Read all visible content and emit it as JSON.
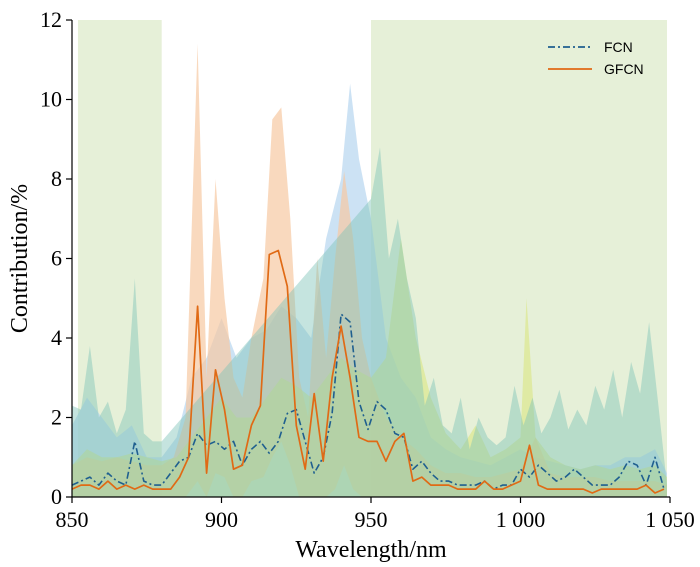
{
  "chart_data": {
    "type": "line",
    "xlabel": "Wavelength/nm",
    "ylabel": "Contribution/%",
    "xlim": [
      850,
      1050
    ],
    "ylim": [
      0,
      12
    ],
    "x_ticks": [
      850,
      900,
      950,
      1000,
      1050
    ],
    "x_tick_labels": [
      "850",
      "900",
      "950",
      "1 000",
      "1 050"
    ],
    "y_ticks": [
      0,
      2,
      4,
      6,
      8,
      10,
      12
    ],
    "y_tick_labels": [
      "0",
      "2",
      "4",
      "6",
      "8",
      "10",
      "12"
    ],
    "highlight_regions": [
      [
        852,
        880
      ],
      [
        950,
        1049
      ]
    ],
    "legend_position": "top-right",
    "colors": {
      "region": "#e6f0d8",
      "fcn_line": "#1f5f8f",
      "gfcn_line": "#e06a15",
      "fcn_band": "#b7d6f0",
      "gfcn_band": "#f7c9a3",
      "yellow_band": "#d8e67a",
      "teal_band": "#7fc3b7"
    },
    "series": [
      {
        "name": "FCN",
        "style": "dash-dot",
        "x": [
          850,
          853,
          856,
          859,
          862,
          865,
          868,
          871,
          874,
          877,
          880,
          883,
          886,
          889,
          892,
          895,
          898,
          901,
          904,
          907,
          910,
          913,
          916,
          919,
          922,
          925,
          928,
          931,
          934,
          937,
          940,
          943,
          946,
          949,
          952,
          955,
          958,
          961,
          964,
          967,
          970,
          973,
          976,
          979,
          982,
          985,
          988,
          991,
          994,
          997,
          1000,
          1003,
          1006,
          1009,
          1012,
          1015,
          1018,
          1021,
          1024,
          1027,
          1030,
          1033,
          1036,
          1039,
          1042,
          1045,
          1048
        ],
        "values": [
          0.3,
          0.4,
          0.5,
          0.3,
          0.6,
          0.4,
          0.3,
          1.4,
          0.4,
          0.3,
          0.3,
          0.6,
          0.9,
          1.0,
          1.6,
          1.3,
          1.4,
          1.2,
          1.4,
          0.8,
          1.2,
          1.4,
          1.1,
          1.4,
          2.1,
          2.2,
          1.4,
          0.6,
          1.0,
          2.1,
          4.6,
          4.4,
          2.4,
          1.7,
          2.4,
          2.2,
          1.6,
          1.5,
          0.7,
          0.9,
          0.6,
          0.4,
          0.4,
          0.3,
          0.3,
          0.3,
          0.4,
          0.2,
          0.3,
          0.3,
          0.7,
          0.5,
          0.8,
          0.6,
          0.4,
          0.5,
          0.7,
          0.5,
          0.3,
          0.3,
          0.3,
          0.5,
          0.9,
          0.8,
          0.3,
          1.0,
          0.2
        ]
      },
      {
        "name": "GFCN",
        "style": "solid",
        "x": [
          850,
          853,
          856,
          859,
          862,
          865,
          868,
          871,
          874,
          877,
          880,
          883,
          886,
          889,
          892,
          895,
          898,
          901,
          904,
          907,
          910,
          913,
          916,
          919,
          922,
          925,
          928,
          931,
          934,
          937,
          940,
          943,
          946,
          949,
          952,
          955,
          958,
          961,
          964,
          967,
          970,
          973,
          976,
          979,
          982,
          985,
          988,
          991,
          994,
          997,
          1000,
          1003,
          1006,
          1009,
          1012,
          1015,
          1018,
          1021,
          1024,
          1027,
          1030,
          1033,
          1036,
          1039,
          1042,
          1045,
          1048
        ],
        "values": [
          0.2,
          0.3,
          0.3,
          0.2,
          0.4,
          0.2,
          0.3,
          0.2,
          0.3,
          0.2,
          0.2,
          0.2,
          0.5,
          1.0,
          4.8,
          0.6,
          3.2,
          2.2,
          0.7,
          0.8,
          1.8,
          2.3,
          6.1,
          6.2,
          5.3,
          1.8,
          0.7,
          2.6,
          0.9,
          3.0,
          4.3,
          3.0,
          1.5,
          1.4,
          1.4,
          0.9,
          1.4,
          1.6,
          0.4,
          0.5,
          0.3,
          0.3,
          0.3,
          0.2,
          0.2,
          0.2,
          0.4,
          0.2,
          0.2,
          0.3,
          0.4,
          1.3,
          0.3,
          0.2,
          0.2,
          0.2,
          0.2,
          0.2,
          0.1,
          0.2,
          0.2,
          0.2,
          0.2,
          0.2,
          0.3,
          0.1,
          0.2
        ]
      }
    ],
    "bands": [
      {
        "name": "FCN",
        "x": [
          850,
          855,
          860,
          865,
          870,
          875,
          880,
          885,
          890,
          895,
          900,
          905,
          910,
          915,
          920,
          925,
          930,
          935,
          940,
          943,
          946,
          950,
          955,
          960,
          965,
          970,
          975,
          980,
          985,
          990,
          995,
          1000,
          1005,
          1010,
          1015,
          1020,
          1025,
          1030,
          1035,
          1040,
          1045,
          1049
        ],
        "upper": [
          1.8,
          2.5,
          2.0,
          1.5,
          1.8,
          1.0,
          1.0,
          1.5,
          3.0,
          3.5,
          4.5,
          3.5,
          4.0,
          4.2,
          4.8,
          4.5,
          4.0,
          6.5,
          8.0,
          10.4,
          8.5,
          7.0,
          4.0,
          3.0,
          2.5,
          1.5,
          1.2,
          1.0,
          0.9,
          0.8,
          1.0,
          1.2,
          1.0,
          0.9,
          0.8,
          0.7,
          0.8,
          0.8,
          1.0,
          1.0,
          1.2,
          0.6
        ],
        "lower": [
          0,
          0,
          0,
          0,
          0,
          0,
          0,
          0,
          0,
          0,
          0,
          0,
          0,
          0,
          0,
          0,
          0,
          0,
          0,
          0,
          0,
          0,
          0,
          0,
          0,
          0,
          0,
          0,
          0,
          0,
          0,
          0,
          0,
          0,
          0,
          0,
          0,
          0,
          0,
          0,
          0,
          0
        ]
      },
      {
        "name": "GFCN",
        "x": [
          850,
          855,
          860,
          865,
          870,
          875,
          880,
          884,
          888,
          892,
          895,
          898,
          901,
          904,
          907,
          910,
          914,
          917,
          920,
          923,
          926,
          929,
          932,
          935,
          938,
          941,
          944,
          947,
          950,
          955,
          960,
          965,
          970,
          975,
          980,
          985,
          990,
          995,
          1000,
          1005,
          1010,
          1015,
          1020,
          1025,
          1030,
          1035,
          1040,
          1045,
          1049
        ],
        "upper": [
          0.8,
          1.0,
          0.9,
          1.0,
          0.9,
          0.8,
          0.8,
          1.0,
          2.0,
          11.4,
          3.0,
          8.0,
          5.0,
          3.0,
          2.5,
          4.0,
          5.5,
          9.5,
          9.8,
          7.0,
          3.0,
          2.0,
          6.0,
          3.5,
          6.0,
          8.2,
          6.5,
          4.0,
          3.0,
          2.0,
          1.5,
          1.2,
          0.8,
          0.6,
          0.6,
          0.5,
          0.5,
          0.6,
          0.7,
          1.5,
          0.6,
          0.5,
          0.5,
          0.5,
          0.4,
          0.4,
          0.4,
          0.4,
          0.3
        ],
        "lower": [
          0,
          0,
          0,
          0,
          0,
          0,
          0,
          0,
          0,
          0.4,
          0,
          0.6,
          0.5,
          0,
          0,
          0.4,
          0.5,
          1.0,
          1.4,
          0.8,
          0,
          0,
          0,
          0,
          0.2,
          0.8,
          0.2,
          0,
          0,
          0,
          0,
          0,
          0,
          0,
          0,
          0,
          0,
          0,
          0,
          0,
          0,
          0,
          0,
          0,
          0,
          0,
          0,
          0,
          0
        ]
      },
      {
        "name": "yellow",
        "x": [
          850,
          855,
          860,
          865,
          870,
          875,
          880,
          885,
          890,
          895,
          900,
          905,
          910,
          915,
          920,
          925,
          930,
          935,
          940,
          945,
          950,
          955,
          960,
          965,
          970,
          975,
          980,
          985,
          990,
          995,
          1000,
          1002,
          1005,
          1010,
          1015,
          1020,
          1025,
          1030,
          1035,
          1040,
          1045,
          1049
        ],
        "upper": [
          0.8,
          1.2,
          1.0,
          1.0,
          1.1,
          1.0,
          0.9,
          1.0,
          1.5,
          2.0,
          2.5,
          2.0,
          2.0,
          2.5,
          3.0,
          2.8,
          2.5,
          3.0,
          3.5,
          3.2,
          3.0,
          3.5,
          6.5,
          4.0,
          2.5,
          1.6,
          1.2,
          1.8,
          1.0,
          1.2,
          1.5,
          5.0,
          1.5,
          1.0,
          0.8,
          0.7,
          0.8,
          0.7,
          0.8,
          0.7,
          0.8,
          0.5
        ],
        "lower": [
          0,
          0,
          0,
          0,
          0,
          0,
          0,
          0,
          0,
          0,
          0,
          0,
          0,
          0,
          0,
          0,
          0,
          0,
          0,
          0,
          0,
          0,
          0,
          0,
          0,
          0,
          0,
          0,
          0,
          0,
          0,
          0,
          0,
          0,
          0,
          0,
          0,
          0,
          0,
          0,
          0,
          0
        ]
      },
      {
        "name": "teal",
        "x": [
          850,
          853,
          856,
          859,
          862,
          865,
          868,
          871,
          874,
          877,
          880,
          950,
          953,
          956,
          959,
          962,
          965,
          968,
          971,
          974,
          977,
          980,
          983,
          986,
          989,
          992,
          995,
          998,
          1001,
          1004,
          1007,
          1010,
          1013,
          1016,
          1019,
          1022,
          1025,
          1028,
          1031,
          1034,
          1037,
          1040,
          1043,
          1046,
          1049
        ],
        "upper": [
          2.3,
          2.2,
          3.8,
          2.0,
          2.4,
          1.6,
          2.2,
          5.5,
          1.6,
          1.4,
          1.4,
          7.5,
          8.8,
          6.0,
          7.0,
          5.5,
          4.5,
          2.3,
          3.0,
          1.8,
          1.6,
          2.5,
          1.2,
          2.0,
          1.5,
          1.3,
          1.5,
          2.8,
          1.8,
          2.5,
          1.6,
          2.0,
          2.7,
          1.7,
          2.2,
          1.8,
          2.8,
          2.2,
          3.2,
          2.0,
          3.4,
          2.6,
          4.4,
          2.4,
          0.3
        ],
        "lower": [
          0,
          0,
          0,
          0,
          0,
          0,
          0,
          0,
          0,
          0,
          0,
          0,
          0,
          0,
          0,
          0,
          0,
          0,
          0,
          0,
          0,
          0,
          0,
          0,
          0,
          0,
          0,
          0,
          0,
          0,
          0,
          0,
          0,
          0,
          0,
          0,
          0,
          0,
          0,
          0,
          0,
          0,
          0,
          0,
          0
        ]
      }
    ]
  }
}
